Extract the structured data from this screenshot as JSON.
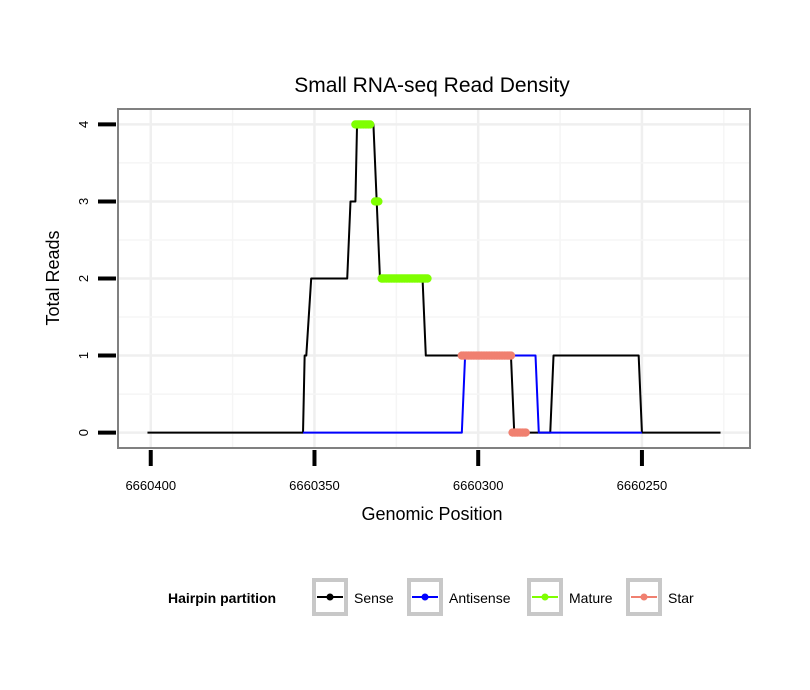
{
  "chart_data": {
    "type": "line",
    "title": "Small RNA-seq Read Density",
    "xlabel": "Genomic Position",
    "ylabel": "Total Reads",
    "xlim": [
      6660410,
      6660217
    ],
    "ylim": [
      -0.2,
      4.2
    ],
    "x_reversed": true,
    "grid": true,
    "xticks": [
      6660400,
      6660350,
      6660300,
      6660250
    ],
    "xtick_labels": [
      "6660400",
      "6660350",
      "6660300",
      "6660250"
    ],
    "yticks": [
      0,
      1,
      2,
      3,
      4
    ],
    "ytick_labels": [
      "0",
      "1",
      "2",
      "3",
      "4"
    ],
    "legend": {
      "title": "Hairpin partition",
      "position": "bottom",
      "entries": [
        {
          "label": "Sense",
          "color": "#000000"
        },
        {
          "label": "Antisense",
          "color": "#0000ff"
        },
        {
          "label": "Mature",
          "color": "#7fff00"
        },
        {
          "label": "Star",
          "color": "#f08070"
        }
      ]
    },
    "series": [
      {
        "name": "Sense",
        "kind": "step",
        "color": "#000000",
        "points": [
          [
            6660401,
            0
          ],
          [
            6660353.5,
            0
          ],
          [
            6660353,
            1
          ],
          [
            6660352.5,
            1
          ],
          [
            6660351,
            2
          ],
          [
            6660340,
            2
          ],
          [
            6660339,
            3
          ],
          [
            6660337.5,
            3
          ],
          [
            6660337,
            4
          ],
          [
            6660332,
            4
          ],
          [
            6660330,
            2
          ],
          [
            6660317,
            2
          ],
          [
            6660316,
            1
          ],
          [
            6660290,
            1
          ],
          [
            6660289,
            0
          ],
          [
            6660278,
            0
          ],
          [
            6660277,
            1
          ],
          [
            6660251,
            1
          ],
          [
            6660250,
            0
          ],
          [
            6660226,
            0
          ]
        ]
      },
      {
        "name": "Antisense",
        "kind": "step",
        "color": "#0000ff",
        "points": [
          [
            6660353.5,
            0
          ],
          [
            6660305,
            0
          ],
          [
            6660304,
            1
          ],
          [
            6660282.5,
            1
          ],
          [
            6660281.5,
            0
          ],
          [
            6660250,
            0
          ]
        ]
      },
      {
        "name": "Mature",
        "kind": "points",
        "color": "#7fff00",
        "segments": [
          {
            "x_from": 6660337.5,
            "x_to": 6660333,
            "y": 4
          },
          {
            "x_from": 6660331.5,
            "x_to": 6660330.5,
            "y": 3
          },
          {
            "x_from": 6660329.5,
            "x_to": 6660315.5,
            "y": 2
          }
        ]
      },
      {
        "name": "Star",
        "kind": "points",
        "color": "#f08070",
        "segments": [
          {
            "x_from": 6660305,
            "x_to": 6660290,
            "y": 1
          },
          {
            "x_from": 6660289.5,
            "x_to": 6660285.5,
            "y": 0
          }
        ]
      }
    ]
  }
}
